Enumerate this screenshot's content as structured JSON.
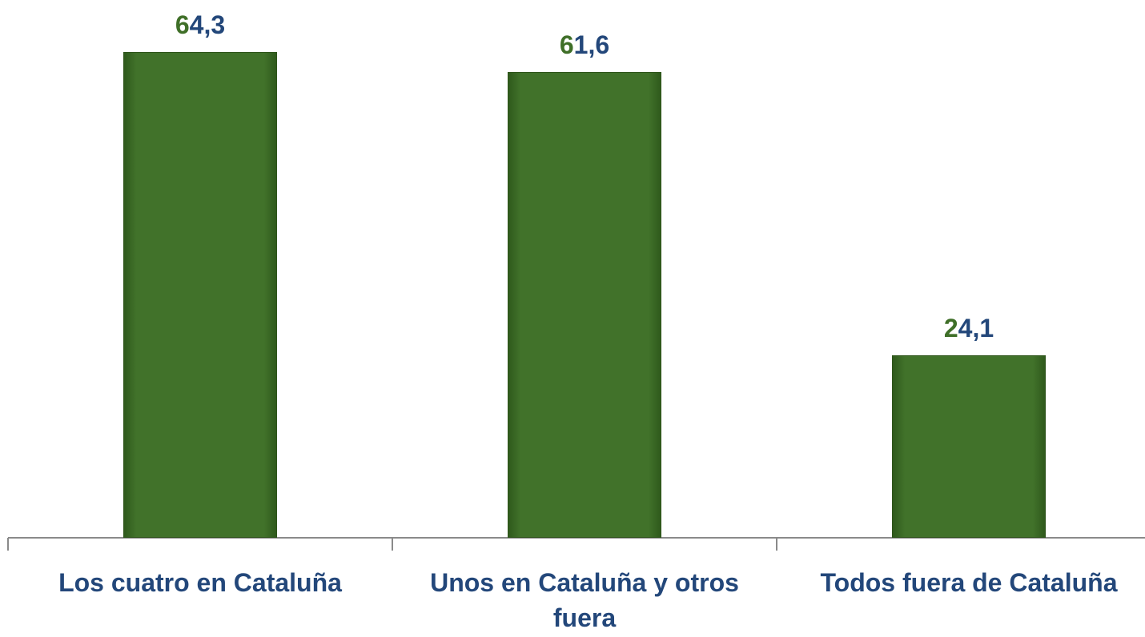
{
  "chart_data": {
    "type": "bar",
    "categories": [
      "Los cuatro en Cataluña",
      "Unos en Cataluña y otros fuera",
      "Todos fuera de Cataluña"
    ],
    "values": [
      64.3,
      61.6,
      24.1
    ],
    "value_labels": [
      "64,3",
      "61,6",
      "24,1"
    ],
    "color": "#41722a"
  }
}
